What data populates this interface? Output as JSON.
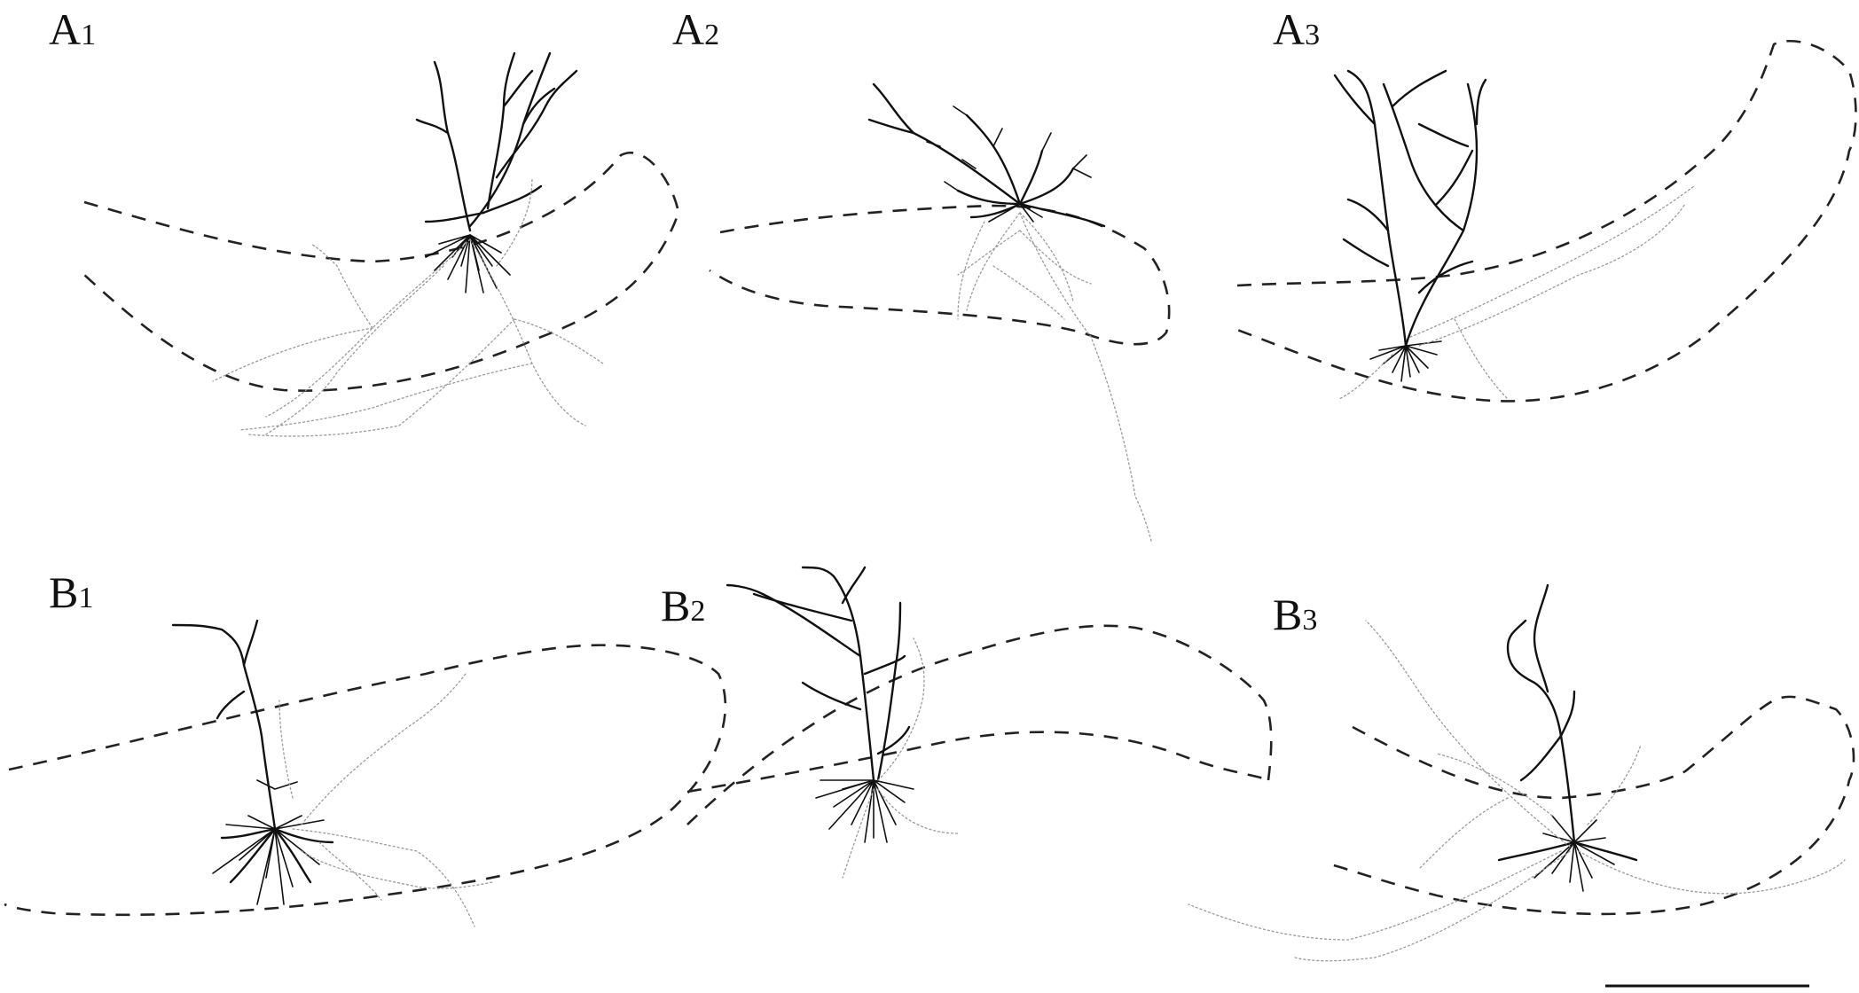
{
  "figure": {
    "panels": [
      {
        "id": "A1",
        "letter": "A",
        "sub": "1"
      },
      {
        "id": "A2",
        "letter": "A",
        "sub": "2"
      },
      {
        "id": "A3",
        "letter": "A",
        "sub": "3"
      },
      {
        "id": "B1",
        "letter": "B",
        "sub": "1"
      },
      {
        "id": "B2",
        "letter": "B",
        "sub": "2"
      },
      {
        "id": "B3",
        "letter": "B",
        "sub": "3"
      }
    ],
    "colors": {
      "dendrite": "#111111",
      "axon": "#9a9a9a",
      "outline": "#222222"
    }
  }
}
